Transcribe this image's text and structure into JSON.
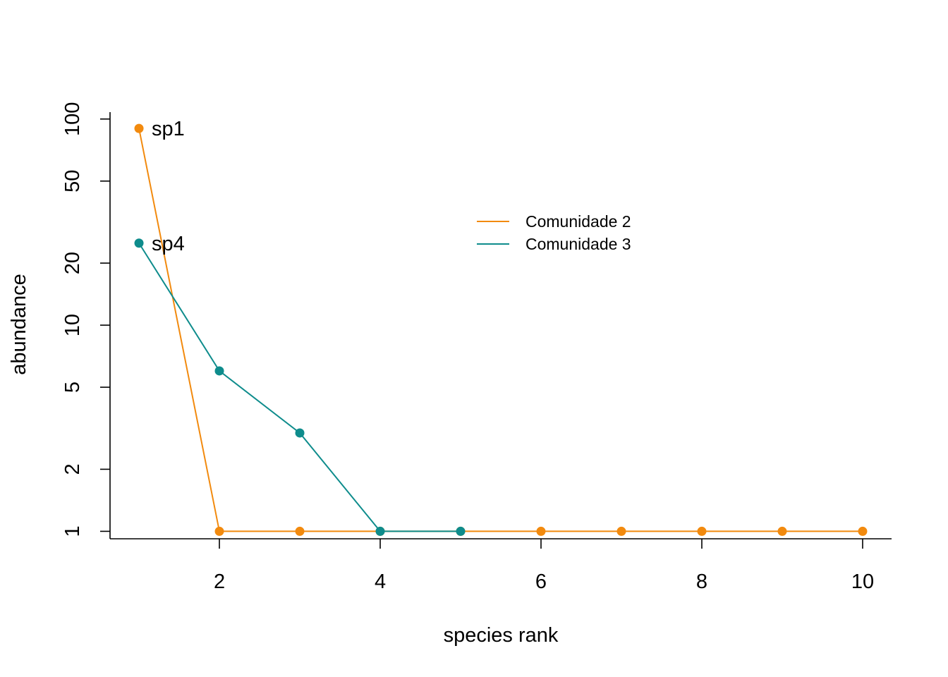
{
  "chart_data": {
    "type": "line",
    "title": "",
    "xlabel": "species rank",
    "ylabel": "abundance",
    "xlim": [
      0.64,
      10.36
    ],
    "ylim": [
      0.92,
      108
    ],
    "y_scale": "log",
    "x_ticks": [
      2,
      4,
      6,
      8,
      10
    ],
    "y_ticks": [
      1,
      2,
      5,
      10,
      20,
      50,
      100
    ],
    "grid": false,
    "legend_position": "upper-center-right",
    "series": [
      {
        "name": "Comunidade 2",
        "color": "#F28A0E",
        "x": [
          1,
          2,
          3,
          4,
          5,
          6,
          7,
          8,
          9,
          10
        ],
        "y": [
          90,
          1,
          1,
          1,
          1,
          1,
          1,
          1,
          1,
          1
        ]
      },
      {
        "name": "Comunidade 3",
        "color": "#0E8C8C",
        "x": [
          1,
          2,
          3,
          4,
          5
        ],
        "y": [
          25,
          6,
          3,
          1,
          1
        ]
      }
    ],
    "annotations": [
      {
        "text": "sp1",
        "x": 1,
        "y": 90
      },
      {
        "text": "sp4",
        "x": 1,
        "y": 25
      }
    ]
  }
}
